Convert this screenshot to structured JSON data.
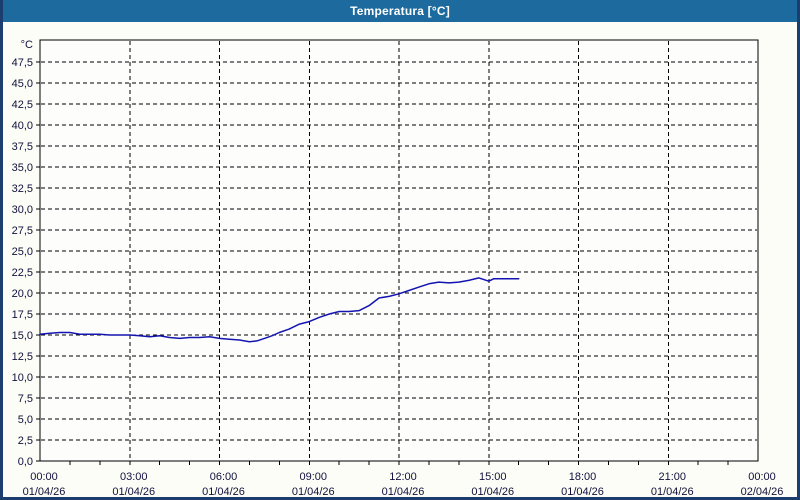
{
  "window": {
    "title": "Temperatura [°C]"
  },
  "colors": {
    "titlebar_bg": "#1d6a9e",
    "titlebar_text": "#ffffff",
    "window_border": "#1c3e6e",
    "content_bg": "#fdfdf7",
    "plot_bg": "#fdfdfb",
    "plot_border": "#000000",
    "gridline": "#000000",
    "axis_label_text": "#10103c",
    "series_line": "#1414b0"
  },
  "chart_data": {
    "type": "line",
    "title": "Temperatura [°C]",
    "y_unit_label": "°C",
    "ylabel": "",
    "xlabel": "",
    "ylim": [
      0,
      47.5
    ],
    "y_tick_step": 2.5,
    "y_tick_labels": [
      "0,0",
      "2,5",
      "5,0",
      "7,5",
      "10,0",
      "12,5",
      "15,0",
      "17,5",
      "20,0",
      "22,5",
      "25,0",
      "27,5",
      "30,0",
      "32,5",
      "35,0",
      "37,5",
      "40,0",
      "42,5",
      "45,0",
      "47,5"
    ],
    "x_range_hours": [
      0,
      24
    ],
    "x_major_gridline_every_hours": 3,
    "x_minor_tick_every_hours": 1,
    "grid_style": "dashed",
    "legend": "none",
    "x_ticks": [
      {
        "time": "00:00",
        "date": "01/04/26"
      },
      {
        "time": "03:00",
        "date": "01/04/26"
      },
      {
        "time": "06:00",
        "date": "01/04/26"
      },
      {
        "time": "09:00",
        "date": "01/04/26"
      },
      {
        "time": "12:00",
        "date": "01/04/26"
      },
      {
        "time": "15:00",
        "date": "01/04/26"
      },
      {
        "time": "18:00",
        "date": "01/04/26"
      },
      {
        "time": "21:00",
        "date": "01/04/26"
      },
      {
        "time": "00:00",
        "date": "02/04/26"
      }
    ],
    "series": [
      {
        "name": "Temperatura",
        "unit": "°C",
        "color": "#1414b0",
        "points": [
          {
            "t": 0.0,
            "v": 15.1
          },
          {
            "t": 0.33,
            "v": 15.2
          },
          {
            "t": 0.67,
            "v": 15.3
          },
          {
            "t": 1.0,
            "v": 15.3
          },
          {
            "t": 1.33,
            "v": 15.1
          },
          {
            "t": 1.67,
            "v": 15.1
          },
          {
            "t": 2.0,
            "v": 15.1
          },
          {
            "t": 2.33,
            "v": 15.0
          },
          {
            "t": 2.67,
            "v": 15.0
          },
          {
            "t": 3.0,
            "v": 15.0
          },
          {
            "t": 3.33,
            "v": 14.9
          },
          {
            "t": 3.67,
            "v": 14.8
          },
          {
            "t": 4.0,
            "v": 14.9
          },
          {
            "t": 4.33,
            "v": 14.7
          },
          {
            "t": 4.67,
            "v": 14.6
          },
          {
            "t": 5.0,
            "v": 14.7
          },
          {
            "t": 5.33,
            "v": 14.7
          },
          {
            "t": 5.67,
            "v": 14.8
          },
          {
            "t": 6.0,
            "v": 14.6
          },
          {
            "t": 6.33,
            "v": 14.5
          },
          {
            "t": 6.67,
            "v": 14.4
          },
          {
            "t": 7.0,
            "v": 14.2
          },
          {
            "t": 7.25,
            "v": 14.3
          },
          {
            "t": 7.5,
            "v": 14.6
          },
          {
            "t": 7.75,
            "v": 14.9
          },
          {
            "t": 8.0,
            "v": 15.3
          },
          {
            "t": 8.33,
            "v": 15.7
          },
          {
            "t": 8.67,
            "v": 16.3
          },
          {
            "t": 9.0,
            "v": 16.6
          },
          {
            "t": 9.33,
            "v": 17.1
          },
          {
            "t": 9.67,
            "v": 17.5
          },
          {
            "t": 10.0,
            "v": 17.8
          },
          {
            "t": 10.33,
            "v": 17.8
          },
          {
            "t": 10.67,
            "v": 17.9
          },
          {
            "t": 11.0,
            "v": 18.5
          },
          {
            "t": 11.33,
            "v": 19.4
          },
          {
            "t": 11.67,
            "v": 19.6
          },
          {
            "t": 12.0,
            "v": 19.9
          },
          {
            "t": 12.33,
            "v": 20.3
          },
          {
            "t": 12.67,
            "v": 20.7
          },
          {
            "t": 13.0,
            "v": 21.1
          },
          {
            "t": 13.33,
            "v": 21.3
          },
          {
            "t": 13.67,
            "v": 21.2
          },
          {
            "t": 14.0,
            "v": 21.3
          },
          {
            "t": 14.33,
            "v": 21.5
          },
          {
            "t": 14.67,
            "v": 21.8
          },
          {
            "t": 15.0,
            "v": 21.4
          },
          {
            "t": 15.17,
            "v": 21.7
          },
          {
            "t": 15.5,
            "v": 21.7
          },
          {
            "t": 16.0,
            "v": 21.7
          }
        ]
      }
    ]
  }
}
